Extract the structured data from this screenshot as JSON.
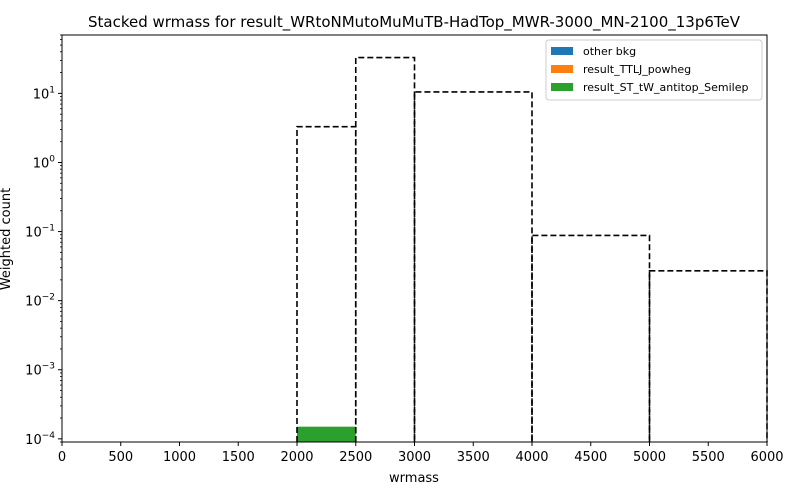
{
  "chart_data": {
    "type": "bar",
    "title": "Stacked wrmass for result_WRtoNMutoMuMuTB-HadTop_MWR-3000_MN-2100_13p6TeV",
    "xlabel": "wrmass",
    "ylabel": "Weighted count",
    "xlim": [
      0,
      6000
    ],
    "ylim": [
      9e-05,
      70
    ],
    "yscale": "log",
    "grid": false,
    "legend_position": "top-right",
    "x_ticks": [
      "0",
      "500",
      "1000",
      "1500",
      "2000",
      "2500",
      "3000",
      "3500",
      "4000",
      "4500",
      "5000",
      "5500",
      "6000"
    ],
    "y_ticks": [
      {
        "base": "10",
        "exp": "−4",
        "value": 0.0001
      },
      {
        "base": "10",
        "exp": "−3",
        "value": 0.001
      },
      {
        "base": "10",
        "exp": "−2",
        "value": 0.01
      },
      {
        "base": "10",
        "exp": "−1",
        "value": 0.1
      },
      {
        "base": "10",
        "exp": "0",
        "value": 1
      },
      {
        "base": "10",
        "exp": "1",
        "value": 10
      }
    ],
    "series": [
      {
        "name": "other bkg",
        "color": "#1f77b4",
        "bins": []
      },
      {
        "name": "result_TTLJ_powheg",
        "color": "#ff7f0e",
        "bins": []
      },
      {
        "name": "result_ST_tW_antitop_Semilep",
        "color": "#2ca02c",
        "bins": [
          {
            "x0": 2000,
            "x1": 2500,
            "value": 0.00015
          }
        ]
      }
    ],
    "signal": {
      "style": "dashed step",
      "color": "#000000",
      "bins": [
        {
          "x0": 2000,
          "x1": 2500,
          "value": 3.3
        },
        {
          "x0": 2500,
          "x1": 3000,
          "value": 33
        },
        {
          "x0": 3000,
          "x1": 4000,
          "value": 10.5
        },
        {
          "x0": 4000,
          "x1": 5000,
          "value": 0.088
        },
        {
          "x0": 5000,
          "x1": 6000,
          "value": 0.027
        }
      ]
    }
  }
}
